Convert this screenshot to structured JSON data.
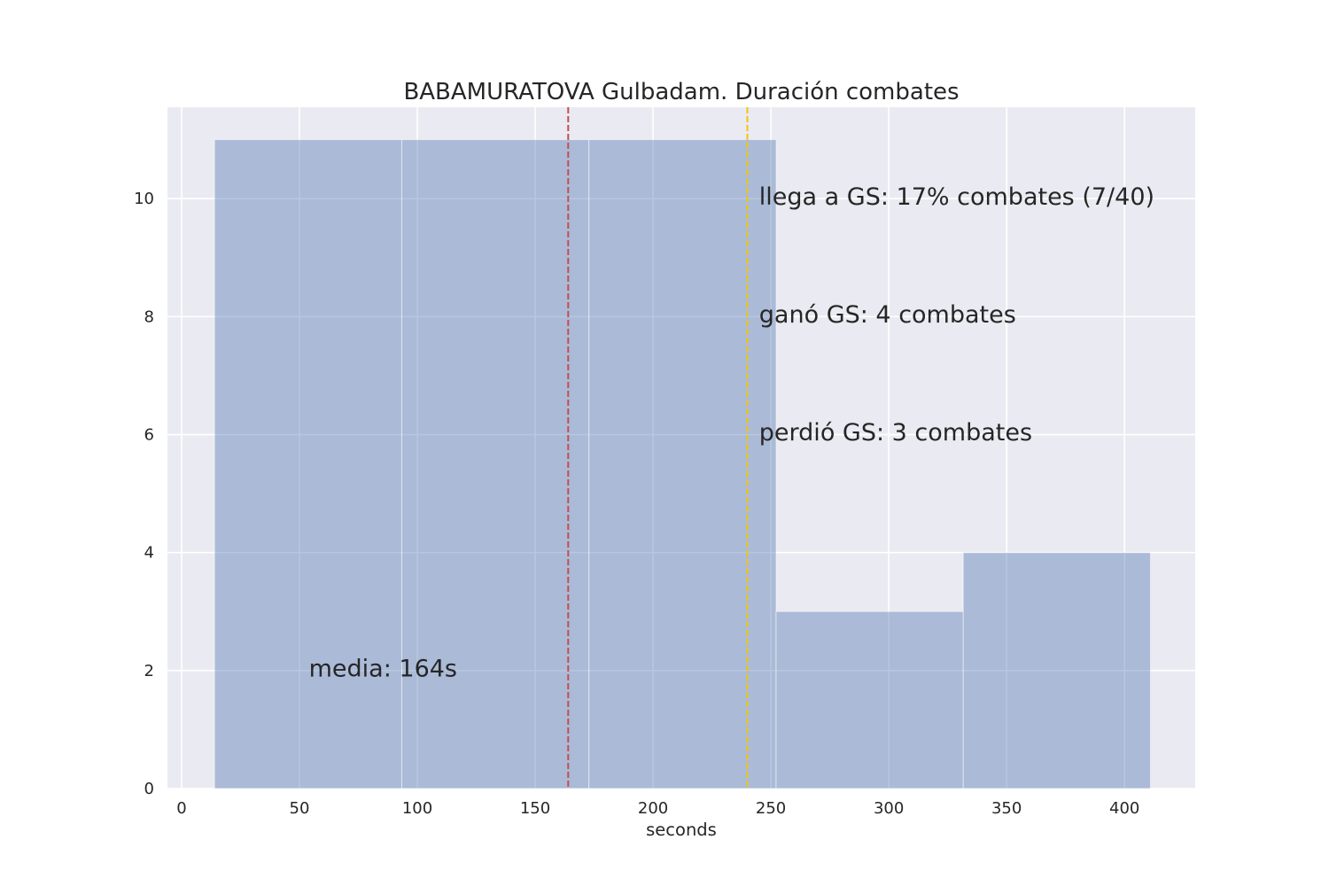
{
  "chart_data": {
    "type": "histogram",
    "title": "BABAMURATOVA Gulbadam. Duración combates",
    "xlabel": "seconds",
    "ylabel": "",
    "xlim": [
      -6,
      430
    ],
    "ylim": [
      0,
      11.55
    ],
    "x_ticks": [
      0,
      50,
      100,
      150,
      200,
      250,
      300,
      350,
      400
    ],
    "y_ticks": [
      0,
      2,
      4,
      6,
      8,
      10
    ],
    "bins": [
      {
        "x0": 14,
        "x1": 93.4,
        "count": 11
      },
      {
        "x0": 93.4,
        "x1": 172.8,
        "count": 11
      },
      {
        "x0": 172.8,
        "x1": 252.2,
        "count": 11
      },
      {
        "x0": 252.2,
        "x1": 331.6,
        "count": 3
      },
      {
        "x0": 331.6,
        "x1": 411,
        "count": 4
      }
    ],
    "bar_color": "#4c72b0",
    "background_color": "#eaeaf2",
    "grid": true,
    "vlines": [
      {
        "name": "mean-line",
        "x": 164,
        "color": "#c44e52"
      },
      {
        "name": "gs-line",
        "x": 240,
        "color": "#f2c40f"
      }
    ],
    "annotations": [
      {
        "name": "annotation-mean",
        "text": "media: 164s",
        "x": 54,
        "y": 1.9,
        "color": "#c44e52"
      },
      {
        "name": "annotation-gs-reach",
        "text": "llega a GS: 17% combates (7/40)",
        "x": 245,
        "y": 9.9,
        "color": "#262626"
      },
      {
        "name": "annotation-gs-won",
        "text": "ganó GS: 4 combates",
        "x": 245,
        "y": 7.9,
        "color": "#262626"
      },
      {
        "name": "annotation-gs-lost",
        "text": "perdió GS: 3 combates",
        "x": 245,
        "y": 5.9,
        "color": "#262626"
      }
    ]
  }
}
